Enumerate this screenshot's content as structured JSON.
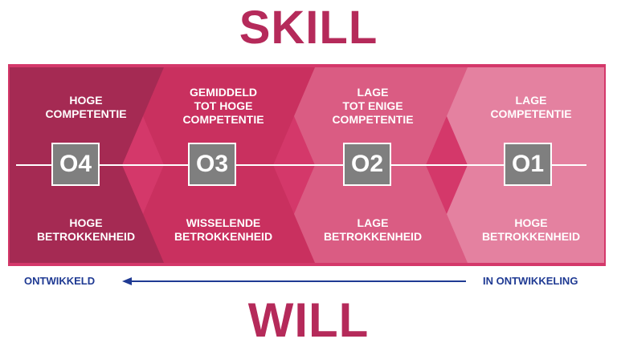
{
  "title_top": "SKILL",
  "title_bottom": "WILL",
  "stages": [
    {
      "code": "O4",
      "competence": "HOGE\nCOMPETENTIE",
      "engagement": "HOGE\nBETROKKENHEID",
      "color": "#a52a53"
    },
    {
      "code": "O3",
      "competence": "GEMIDDELD\nTOT HOGE\nCOMPETENTIE",
      "engagement": "WISSELENDE\nBETROKKENHEID",
      "color": "#c9305f"
    },
    {
      "code": "O2",
      "competence": "LAGE\nTOT ENIGE\nCOMPETENTIE",
      "engagement": "LAGE\nBETROKKENHEID",
      "color": "#da5c83"
    },
    {
      "code": "O1",
      "competence": "LAGE\nCOMPETENTIE",
      "engagement": "HOGE\nBETROKKENHEID",
      "color": "#e481a0"
    }
  ],
  "axis": {
    "left_label": "ONTWIKKELD",
    "right_label": "IN ONTWIKKELING",
    "color": "#1f3a93"
  },
  "colors": {
    "title": "#b52a5a",
    "badge": "#7f7f7f"
  }
}
